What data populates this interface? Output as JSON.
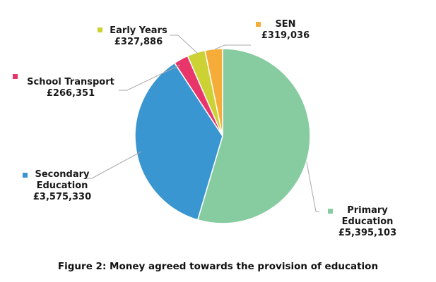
{
  "caption": "Figure 2: Money agreed towards the provision of education",
  "chart_data": {
    "type": "pie",
    "slices": [
      {
        "label": "Primary Education",
        "label_lines": [
          "Primary",
          "Education"
        ],
        "value": 5395103,
        "value_text": "£5,395,103",
        "color": "#87cca0"
      },
      {
        "label": "Secondary Education",
        "label_lines": [
          "Secondary",
          "Education"
        ],
        "value": 3575330,
        "value_text": "£3,575,330",
        "color": "#3a96d0"
      },
      {
        "label": "School Transport",
        "label_lines": [
          "School Transport"
        ],
        "value": 266351,
        "value_text": "£266,351",
        "color": "#e8366b"
      },
      {
        "label": "Early Years",
        "label_lines": [
          "Early Years"
        ],
        "value": 327886,
        "value_text": "£327,886",
        "color": "#ccd134"
      },
      {
        "label": "SEN",
        "label_lines": [
          "SEN"
        ],
        "value": 319036,
        "value_text": "£319,036",
        "color": "#f5ac38"
      }
    ]
  }
}
